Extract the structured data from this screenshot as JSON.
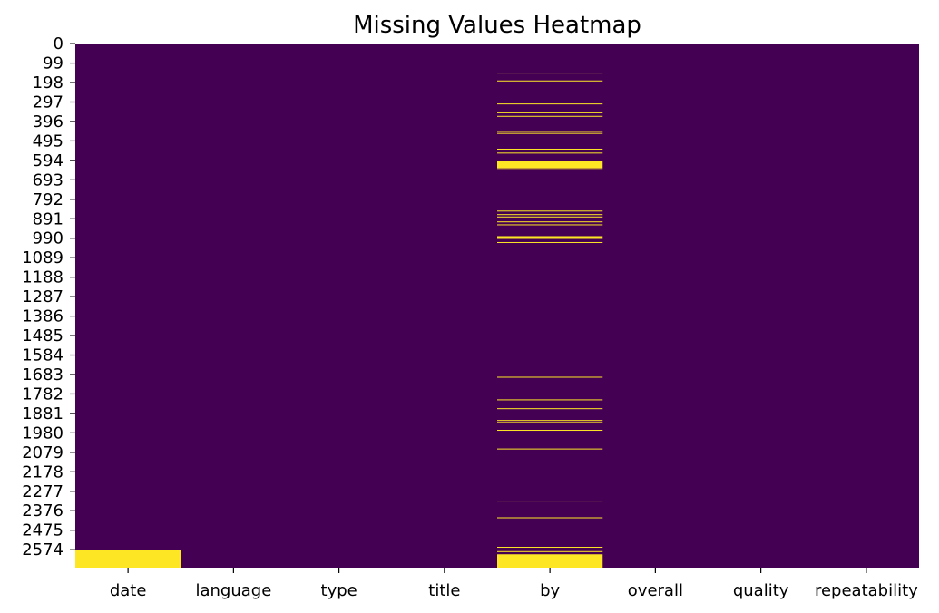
{
  "chart_data": {
    "type": "heatmap",
    "title": "Missing Values Heatmap",
    "columns": [
      "date",
      "language",
      "type",
      "title",
      "by",
      "overall",
      "quality",
      "repeatability"
    ],
    "y_tick_labels": [
      "0",
      "99",
      "198",
      "297",
      "396",
      "495",
      "594",
      "693",
      "792",
      "891",
      "990",
      "1089",
      "1188",
      "1287",
      "1386",
      "1485",
      "1584",
      "1683",
      "1782",
      "1881",
      "1980",
      "2079",
      "2178",
      "2277",
      "2376",
      "2475",
      "2574"
    ],
    "row_count": 2666,
    "ylim": [
      0,
      2666
    ],
    "missing_ranges": {
      "date": [
        [
          2575,
          2666
        ]
      ],
      "language": [],
      "type": [],
      "title": [],
      "by": [
        [
          148,
          152
        ],
        [
          188,
          192
        ],
        [
          305,
          309
        ],
        [
          350,
          354
        ],
        [
          368,
          372
        ],
        [
          445,
          449
        ],
        [
          455,
          459
        ],
        [
          535,
          539
        ],
        [
          555,
          559
        ],
        [
          595,
          635
        ],
        [
          640,
          644
        ],
        [
          850,
          854
        ],
        [
          868,
          872
        ],
        [
          880,
          884
        ],
        [
          905,
          909
        ],
        [
          920,
          924
        ],
        [
          980,
          994
        ],
        [
          1010,
          1014
        ],
        [
          1695,
          1699
        ],
        [
          1810,
          1814
        ],
        [
          1855,
          1859
        ],
        [
          1915,
          1919
        ],
        [
          1925,
          1929
        ],
        [
          1965,
          1969
        ],
        [
          2060,
          2064
        ],
        [
          2325,
          2329
        ],
        [
          2410,
          2414
        ],
        [
          2560,
          2564
        ],
        [
          2582,
          2586
        ],
        [
          2598,
          2666
        ]
      ],
      "overall": [],
      "quality": [],
      "repeatability": []
    },
    "colors": {
      "present": "#440154",
      "missing": "#fde725"
    }
  }
}
